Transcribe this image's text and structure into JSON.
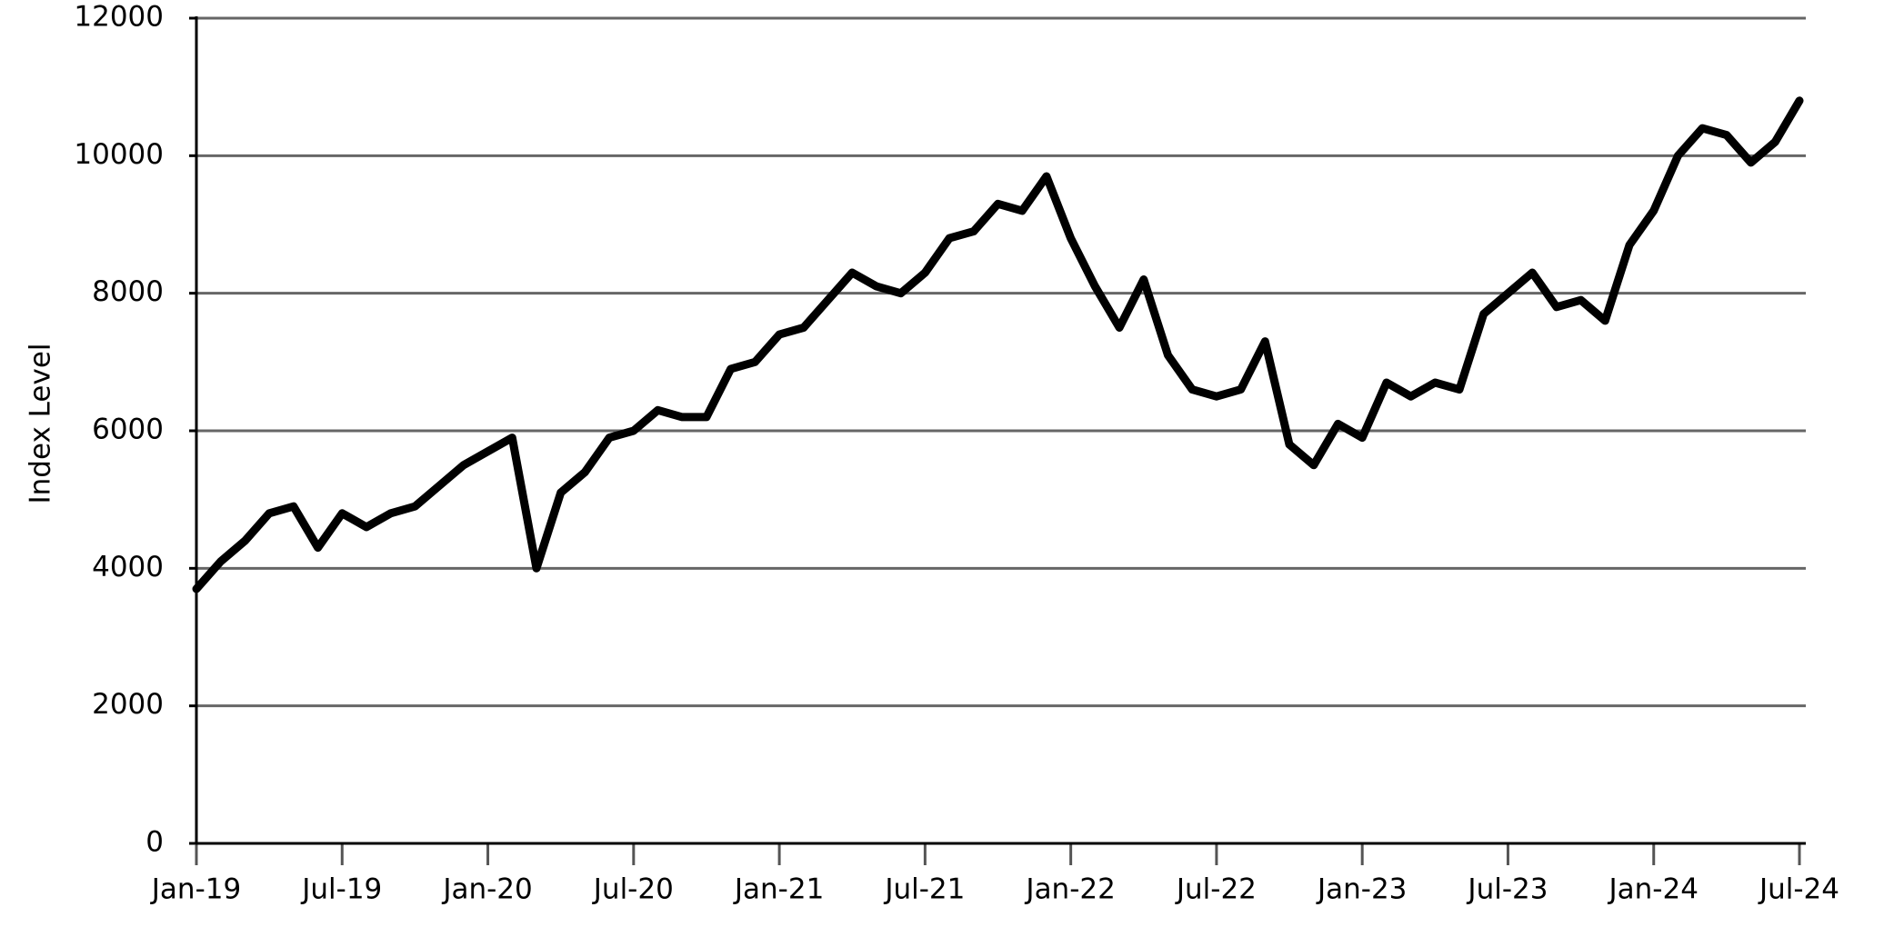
{
  "chart_data": {
    "type": "line",
    "y_label": "Index Level",
    "x": [
      "2019-01",
      "2019-02",
      "2019-03",
      "2019-04",
      "2019-05",
      "2019-06",
      "2019-07",
      "2019-08",
      "2019-09",
      "2019-10",
      "2019-11",
      "2019-12",
      "2020-01",
      "2020-02",
      "2020-03",
      "2020-04",
      "2020-05",
      "2020-06",
      "2020-07",
      "2020-08",
      "2020-09",
      "2020-10",
      "2020-11",
      "2020-12",
      "2021-01",
      "2021-02",
      "2021-03",
      "2021-04",
      "2021-05",
      "2021-06",
      "2021-07",
      "2021-08",
      "2021-09",
      "2021-10",
      "2021-11",
      "2021-12",
      "2022-01",
      "2022-02",
      "2022-03",
      "2022-04",
      "2022-05",
      "2022-06",
      "2022-07",
      "2022-08",
      "2022-09",
      "2022-10",
      "2022-11",
      "2022-12",
      "2023-01",
      "2023-02",
      "2023-03",
      "2023-04",
      "2023-05",
      "2023-06",
      "2023-07",
      "2023-08",
      "2023-09",
      "2023-10",
      "2023-11",
      "2023-12",
      "2024-01",
      "2024-02",
      "2024-03",
      "2024-04",
      "2024-05",
      "2024-06",
      "2024-07"
    ],
    "series": [
      {
        "name": "Index Level",
        "color": "#000000",
        "values": [
          3700,
          4100,
          4400,
          4800,
          4900,
          4300,
          4800,
          4600,
          4800,
          4900,
          5200,
          5500,
          5700,
          5900,
          4000,
          5100,
          5400,
          5900,
          6000,
          6300,
          6200,
          6200,
          6900,
          7000,
          7400,
          7500,
          7900,
          8300,
          8100,
          8000,
          8300,
          8800,
          8900,
          9300,
          9200,
          9700,
          8800,
          8100,
          7500,
          8200,
          7100,
          6600,
          6500,
          6600,
          7300,
          5800,
          5500,
          6100,
          5900,
          6700,
          6500,
          6700,
          6600,
          7700,
          8000,
          8300,
          7800,
          7900,
          7600,
          8700,
          9200,
          10000,
          10400,
          10300,
          9900,
          10200,
          10800
        ]
      }
    ],
    "xlim": [
      "2019-01",
      "2024-07"
    ],
    "xticks": [
      {
        "value": "2019-01",
        "label": "Jan-19"
      },
      {
        "value": "2019-07",
        "label": "Jul-19"
      },
      {
        "value": "2020-01",
        "label": "Jan-20"
      },
      {
        "value": "2020-07",
        "label": "Jul-20"
      },
      {
        "value": "2021-01",
        "label": "Jan-21"
      },
      {
        "value": "2021-07",
        "label": "Jul-21"
      },
      {
        "value": "2022-01",
        "label": "Jan-22"
      },
      {
        "value": "2022-07",
        "label": "Jul-22"
      },
      {
        "value": "2023-01",
        "label": "Jan-23"
      },
      {
        "value": "2023-07",
        "label": "Jul-23"
      },
      {
        "value": "2024-01",
        "label": "Jan-24"
      },
      {
        "value": "2024-07",
        "label": "Jul-24"
      }
    ],
    "ylim": [
      0,
      12000
    ],
    "yticks": [
      0,
      2000,
      4000,
      6000,
      8000,
      10000,
      12000
    ],
    "grid": true
  }
}
